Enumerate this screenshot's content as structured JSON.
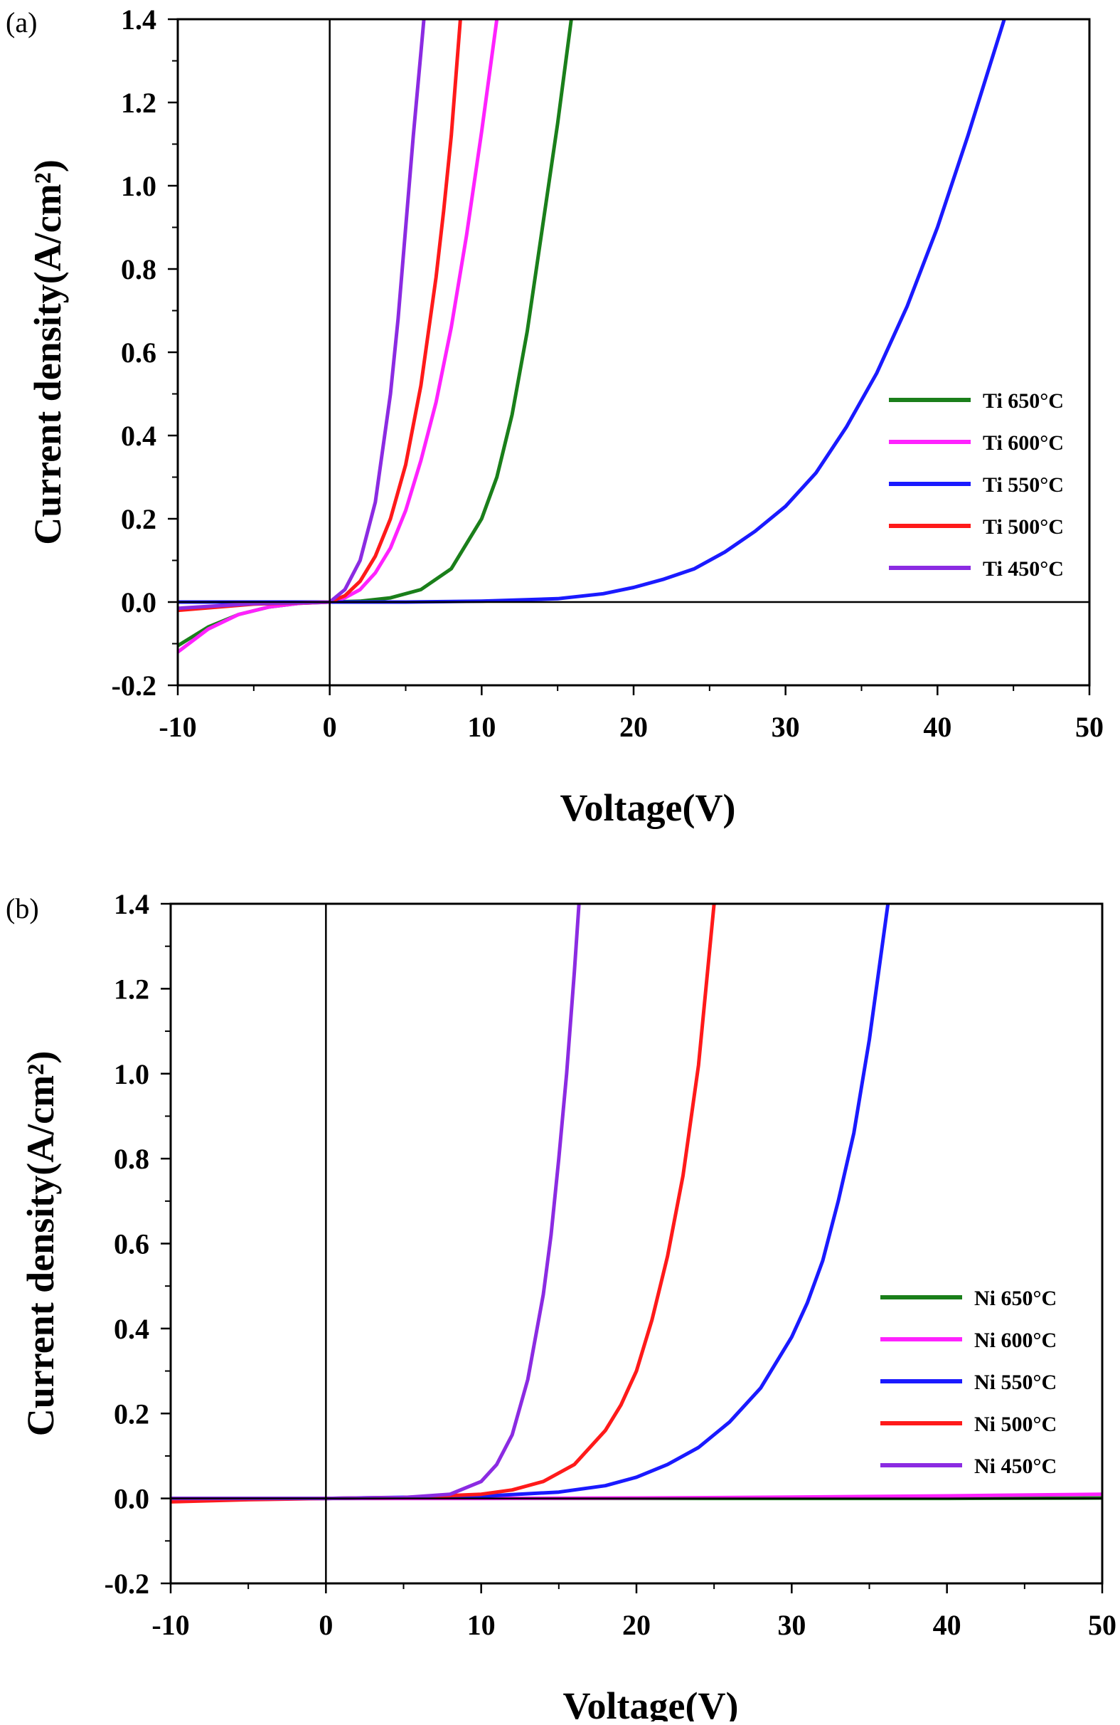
{
  "chart_data": [
    {
      "panel_label": "(a)",
      "type": "line",
      "xlabel": "Voltage(V)",
      "ylabel": "Current density(A/cm²)",
      "xlim": [
        -10,
        50
      ],
      "ylim": [
        -0.2,
        1.4
      ],
      "xticks": [
        "-10",
        "0",
        "10",
        "20",
        "30",
        "40",
        "50"
      ],
      "yticks": [
        "-0.2",
        "0.0",
        "0.2",
        "0.4",
        "0.6",
        "0.8",
        "1.0",
        "1.2",
        "1.4"
      ],
      "legend_position": "right",
      "series": [
        {
          "name": "Ti 650°C",
          "color": "#1a7f1a",
          "x": [
            -10,
            -8,
            -6,
            -4,
            -2,
            0,
            2,
            4,
            6,
            8,
            10,
            11,
            12,
            13,
            14,
            15,
            15.9
          ],
          "y": [
            -0.105,
            -0.06,
            -0.03,
            -0.012,
            -0.003,
            0,
            0.002,
            0.01,
            0.03,
            0.08,
            0.2,
            0.3,
            0.45,
            0.65,
            0.9,
            1.15,
            1.4
          ]
        },
        {
          "name": "Ti 600°C",
          "color": "#ff22ff",
          "x": [
            -10,
            -8,
            -6,
            -4,
            -2,
            0,
            1,
            2,
            3,
            4,
            5,
            6,
            7,
            8,
            9,
            10,
            11
          ],
          "y": [
            -0.12,
            -0.065,
            -0.03,
            -0.012,
            -0.003,
            0,
            0.01,
            0.03,
            0.07,
            0.13,
            0.22,
            0.34,
            0.48,
            0.66,
            0.88,
            1.13,
            1.4
          ]
        },
        {
          "name": "Ti 550°C",
          "color": "#1a1aff",
          "x": [
            -10,
            0,
            5,
            10,
            15,
            18,
            20,
            22,
            24,
            26,
            28,
            30,
            32,
            34,
            36,
            38,
            40,
            42,
            44.4
          ],
          "y": [
            0,
            0,
            0,
            0.002,
            0.008,
            0.02,
            0.035,
            0.055,
            0.08,
            0.12,
            0.17,
            0.23,
            0.31,
            0.42,
            0.55,
            0.71,
            0.9,
            1.12,
            1.4
          ]
        },
        {
          "name": "Ti 500°C",
          "color": "#ff1a1a",
          "x": [
            -10,
            -5,
            0,
            1,
            2,
            3,
            4,
            5,
            6,
            7,
            7.5,
            8,
            8.6
          ],
          "y": [
            -0.02,
            -0.005,
            0,
            0.015,
            0.05,
            0.11,
            0.2,
            0.33,
            0.52,
            0.78,
            0.94,
            1.12,
            1.4
          ]
        },
        {
          "name": "Ti 450°C",
          "color": "#8b2be2",
          "x": [
            -10,
            -5,
            0,
            1,
            2,
            3,
            4,
            4.5,
            5,
            5.5,
            6,
            6.2
          ],
          "y": [
            -0.015,
            -0.004,
            0,
            0.03,
            0.1,
            0.24,
            0.5,
            0.68,
            0.9,
            1.12,
            1.32,
            1.4
          ]
        }
      ]
    },
    {
      "panel_label": "(b)",
      "type": "line",
      "xlabel": "Voltage(V)",
      "ylabel": "Current density(A/cm²)",
      "xlim": [
        -10,
        50
      ],
      "ylim": [
        -0.2,
        1.4
      ],
      "xticks": [
        "-10",
        "0",
        "10",
        "20",
        "30",
        "40",
        "50"
      ],
      "yticks": [
        "-0.2",
        "0.0",
        "0.2",
        "0.4",
        "0.6",
        "0.8",
        "1.0",
        "1.2",
        "1.4"
      ],
      "legend_position": "right",
      "series": [
        {
          "name": "Ni 650°C",
          "color": "#1a7f1a",
          "x": [
            -10,
            0,
            10,
            20,
            30,
            40,
            50
          ],
          "y": [
            0,
            0,
            0,
            0,
            0,
            0,
            0.001
          ]
        },
        {
          "name": "Ni 600°C",
          "color": "#ff22ff",
          "x": [
            -10,
            0,
            10,
            20,
            30,
            40,
            50
          ],
          "y": [
            0,
            0,
            0,
            0.001,
            0.003,
            0.006,
            0.01
          ]
        },
        {
          "name": "Ni 550°C",
          "color": "#1a1aff",
          "x": [
            -10,
            0,
            10,
            15,
            18,
            20,
            22,
            24,
            26,
            28,
            30,
            31,
            32,
            33,
            34,
            35,
            36.2
          ],
          "y": [
            0,
            0,
            0.005,
            0.015,
            0.03,
            0.05,
            0.08,
            0.12,
            0.18,
            0.26,
            0.38,
            0.46,
            0.56,
            0.7,
            0.86,
            1.08,
            1.4
          ]
        },
        {
          "name": "Ni 500°C",
          "color": "#ff1a1a",
          "x": [
            -10,
            -5,
            0,
            5,
            10,
            12,
            14,
            16,
            18,
            19,
            20,
            21,
            22,
            23,
            24,
            25
          ],
          "y": [
            -0.008,
            -0.003,
            0,
            0.002,
            0.01,
            0.02,
            0.04,
            0.08,
            0.16,
            0.22,
            0.3,
            0.42,
            0.57,
            0.76,
            1.02,
            1.4
          ]
        },
        {
          "name": "Ni 450°C",
          "color": "#8b2be2",
          "x": [
            -10,
            0,
            5,
            8,
            10,
            11,
            12,
            13,
            14,
            14.5,
            15,
            15.5,
            16,
            16.3
          ],
          "y": [
            0,
            0,
            0.002,
            0.01,
            0.04,
            0.08,
            0.15,
            0.28,
            0.48,
            0.62,
            0.8,
            1.0,
            1.24,
            1.4
          ]
        }
      ]
    }
  ]
}
